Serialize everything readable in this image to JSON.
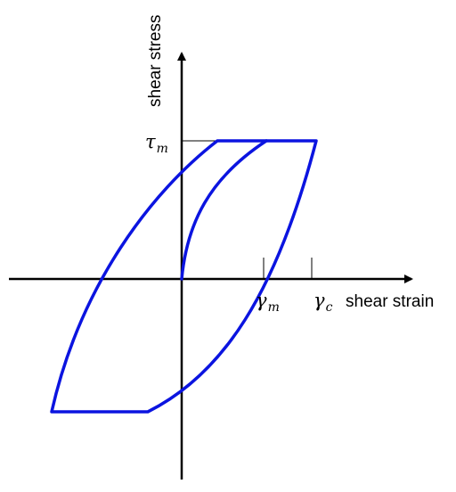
{
  "axes": {
    "x_label": "shear strain",
    "y_label": "shear stress"
  },
  "labels": {
    "tau": {
      "base": "τ",
      "sub": "m"
    },
    "gamma_m": {
      "base": "γ",
      "sub": "m"
    },
    "gamma_c": {
      "base": "γ",
      "sub": "c"
    }
  },
  "colors": {
    "curve": "#0b14e0",
    "axis": "#000000"
  }
}
